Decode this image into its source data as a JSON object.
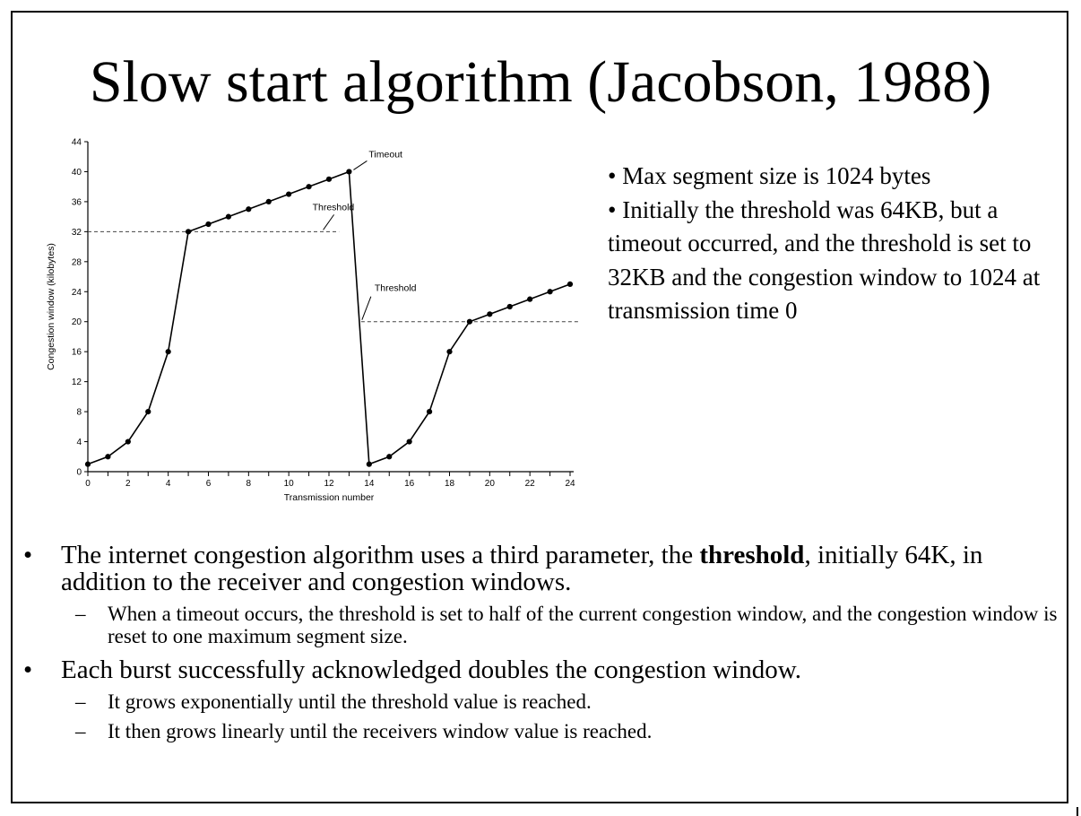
{
  "slide": {
    "title": "Slow start algorithm (Jacobson, 1988)",
    "side_points": [
      "• Max segment size is 1024 bytes",
      "• Initially the threshold was  64KB, but a timeout occurred, and the threshold is set to 32KB and the congestion window to 1024 at transmission time 0"
    ],
    "bullets": [
      {
        "marker": "•",
        "pre": "The internet congestion algorithm uses a third parameter, the ",
        "bold": "threshold",
        "post": ", initially 64K, in addition to the receiver and congestion windows.",
        "sub": [
          {
            "marker": "–",
            "text": "When a timeout occurs, the threshold is set to half of the current congestion window, and the congestion window is reset to one maximum segment size."
          }
        ]
      },
      {
        "marker": "•",
        "text": "Each burst successfully acknowledged doubles the congestion window.",
        "sub": [
          {
            "marker": "–",
            "text": "It grows exponentially until the threshold value is reached."
          },
          {
            "marker": "–",
            "text": "It then grows linearly until the receivers window value is reached."
          }
        ]
      }
    ]
  },
  "chart_data": {
    "type": "line",
    "xlabel": "Transmission number",
    "ylabel": "Congestion window (kilobytes)",
    "xlim": [
      0,
      24
    ],
    "ylim": [
      0,
      44
    ],
    "xticks": [
      0,
      2,
      4,
      6,
      8,
      10,
      12,
      14,
      16,
      18,
      20,
      22,
      24
    ],
    "yticks": [
      0,
      4,
      8,
      12,
      16,
      20,
      24,
      28,
      32,
      36,
      40,
      44
    ],
    "grid": false,
    "series": [
      {
        "points": [
          [
            0,
            1
          ],
          [
            1,
            2
          ],
          [
            2,
            4
          ],
          [
            3,
            8
          ],
          [
            4,
            16
          ],
          [
            5,
            32
          ],
          [
            6,
            33
          ],
          [
            7,
            34
          ],
          [
            8,
            35
          ],
          [
            9,
            36
          ],
          [
            10,
            37
          ],
          [
            11,
            38
          ],
          [
            12,
            39
          ],
          [
            13,
            40
          ],
          [
            14,
            1
          ],
          [
            15,
            2
          ],
          [
            16,
            4
          ],
          [
            17,
            8
          ],
          [
            18,
            16
          ],
          [
            19,
            20
          ],
          [
            20,
            21
          ],
          [
            21,
            22
          ],
          [
            22,
            23
          ],
          [
            23,
            24
          ],
          [
            24,
            25
          ]
        ]
      }
    ],
    "thresholds": [
      {
        "y": 32,
        "x_from": 0,
        "x_to": 12.5
      },
      {
        "y": 20,
        "x_from": 13.6,
        "x_to": 24.5
      }
    ],
    "annotations": [
      {
        "text": "Timeout",
        "x": 13,
        "y": 40
      },
      {
        "text": "Threshold",
        "x": 11,
        "y": 32
      },
      {
        "text": "Threshold",
        "x": 14,
        "y": 20
      }
    ]
  }
}
